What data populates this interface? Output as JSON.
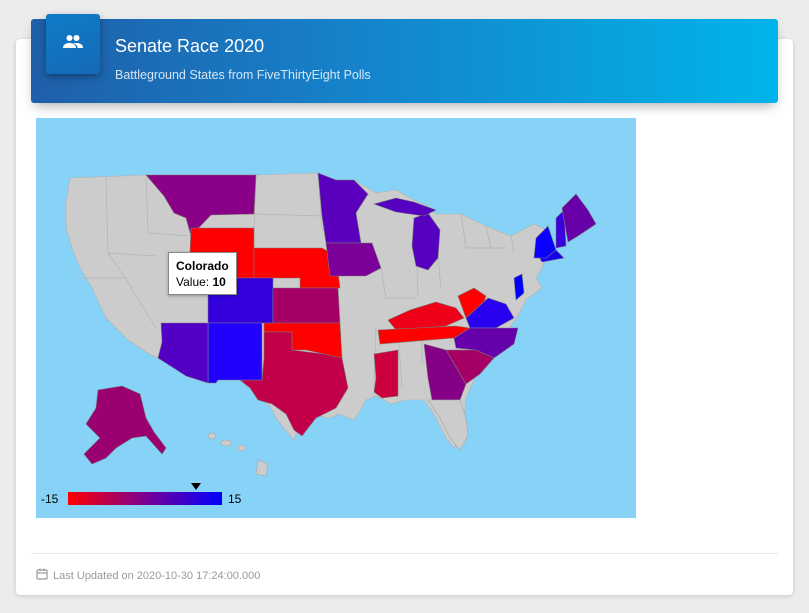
{
  "header": {
    "title": "Senate Race 2020",
    "subtitle": "Battleground States from FiveThirtyEight Polls",
    "icon": "people-icon"
  },
  "map": {
    "background_color": "#87d3f8",
    "neutral_state_color": "#cccccc",
    "tooltip": {
      "state": "Colorado",
      "value_label": "Value: ",
      "value": "10"
    },
    "legend": {
      "min_label": "-15",
      "max_label": "15",
      "min": -15,
      "max": 15,
      "marker_value": 10,
      "colors": [
        "#ff0000",
        "#7a0093",
        "#0000ff"
      ]
    },
    "states": [
      {
        "name": "Montana",
        "value": -3
      },
      {
        "name": "Wyoming",
        "value": -15
      },
      {
        "name": "Nebraska",
        "value": -15
      },
      {
        "name": "Colorado",
        "value": 10
      },
      {
        "name": "Kansas",
        "value": -4
      },
      {
        "name": "Oklahoma",
        "value": -15
      },
      {
        "name": "Texas",
        "value": -7
      },
      {
        "name": "New Mexico",
        "value": 13
      },
      {
        "name": "Arizona",
        "value": 6
      },
      {
        "name": "Minnesota",
        "value": 7
      },
      {
        "name": "Iowa",
        "value": 0
      },
      {
        "name": "Michigan",
        "value": 7
      },
      {
        "name": "Kentucky",
        "value": -12
      },
      {
        "name": "Tennessee",
        "value": -15
      },
      {
        "name": "West Virginia",
        "value": -15
      },
      {
        "name": "Virginia",
        "value": 13
      },
      {
        "name": "North Carolina",
        "value": 3
      },
      {
        "name": "South Carolina",
        "value": -3
      },
      {
        "name": "Georgia",
        "value": -1
      },
      {
        "name": "Mississippi",
        "value": -8
      },
      {
        "name": "New Jersey",
        "value": 15
      },
      {
        "name": "Delaware",
        "value": 15
      },
      {
        "name": "New Hampshire",
        "value": 12
      },
      {
        "name": "Massachusetts",
        "value": 15
      },
      {
        "name": "Maine",
        "value": 3
      },
      {
        "name": "Alaska",
        "value": -5
      }
    ]
  },
  "footer": {
    "last_updated": "Last Updated on 2020-10-30 17:24:00.000",
    "icon": "calendar-icon"
  }
}
